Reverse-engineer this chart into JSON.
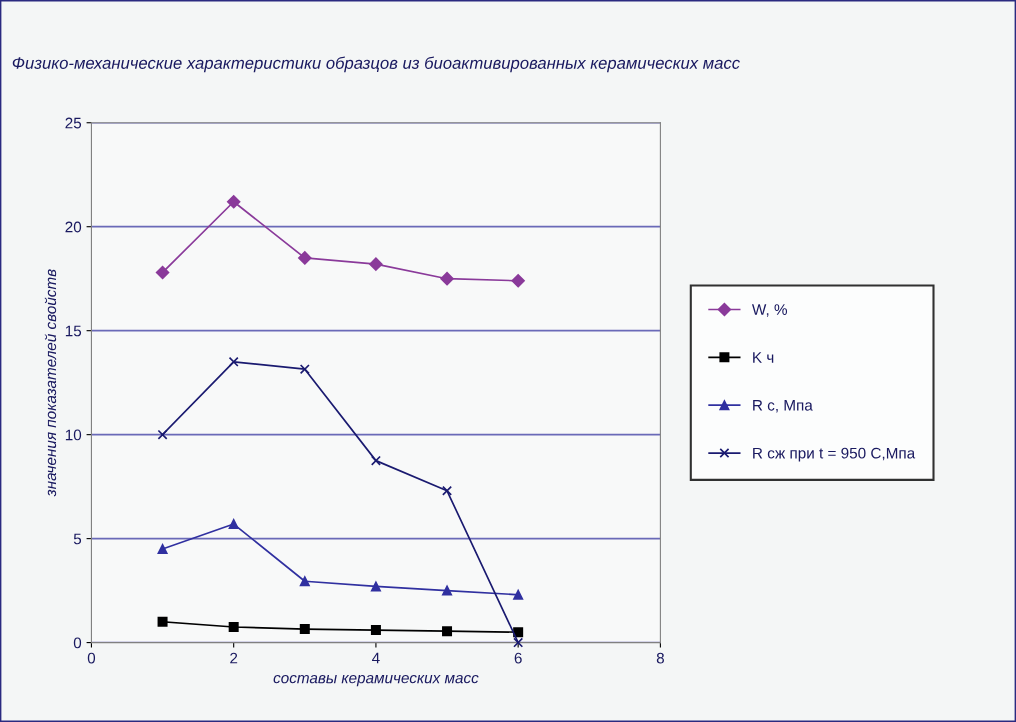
{
  "chart_data": {
    "type": "line",
    "title": "Физико-механические характеристики образцов из биоактивированных керамических масс",
    "xlabel": "составы керамических масс",
    "ylabel": "значения показателей свойств",
    "x": [
      1,
      2,
      3,
      4,
      5,
      6
    ],
    "xlim": [
      0,
      8
    ],
    "xticks": [
      0,
      2,
      4,
      6,
      8
    ],
    "ylim": [
      0,
      25
    ],
    "yticks": [
      0,
      5,
      10,
      15,
      20,
      25
    ],
    "grid": "y",
    "legend": "right",
    "series": [
      {
        "name": "W, %",
        "color": "#8a3a9a",
        "marker": "diamond",
        "values": [
          17.8,
          21.2,
          18.5,
          18.2,
          17.5,
          17.4
        ]
      },
      {
        "name": "K ч",
        "color": "#000000",
        "marker": "square",
        "values": [
          1.0,
          0.75,
          0.65,
          0.6,
          0.55,
          0.5
        ]
      },
      {
        "name": "R c, Мпа",
        "color": "#3030a0",
        "marker": "triangle",
        "values": [
          4.5,
          5.7,
          2.95,
          2.7,
          2.5,
          2.3
        ]
      },
      {
        "name": "R сж при t = 950 С,Мпа",
        "color": "#1a1a70",
        "marker": "cross",
        "values": [
          10.0,
          13.5,
          13.15,
          8.75,
          7.3,
          0.0
        ]
      }
    ]
  }
}
